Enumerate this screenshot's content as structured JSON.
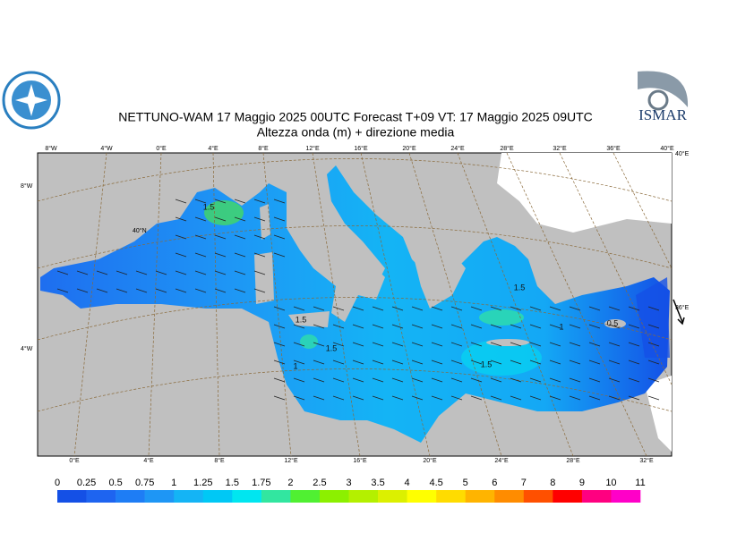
{
  "header": {
    "title": "NETTUNO-WAM  17   Maggio  2025 00UTC Forecast T+09 VT: 17   Maggio  2025 09UTC",
    "subtitle": "Altezza onda (m) + direzione media"
  },
  "logos": {
    "right": "ISMAR"
  },
  "graticule": {
    "top": [
      "8°W",
      "4°W",
      "0°E",
      "4°E",
      "8°E",
      "12°E",
      "16°E",
      "20°E",
      "24°E",
      "28°E",
      "32°E",
      "36°E",
      "40°E"
    ],
    "bottom": [
      "0°E",
      "4°E",
      "8°E",
      "12°E",
      "16°E",
      "20°E",
      "24°E",
      "28°E",
      "32°E"
    ],
    "left": [
      "8°W",
      "4°W"
    ],
    "right": [
      "40°E",
      "36°E"
    ],
    "inner": [
      "40°N"
    ]
  },
  "contour_labels": [
    "1.5",
    "1.5",
    "1.5",
    "1",
    "1.5",
    "1",
    "1.5",
    "0.5"
  ],
  "colorbar": {
    "ticks": [
      0,
      0.25,
      0.5,
      0.75,
      1,
      1.25,
      1.5,
      1.75,
      2,
      2.5,
      3,
      3.5,
      4,
      4.5,
      5,
      6,
      7,
      8,
      9,
      10,
      11
    ],
    "colors": [
      "#1450e6",
      "#1e64f0",
      "#1e7df5",
      "#1e96f5",
      "#14b4f5",
      "#00c8f5",
      "#00e6f0",
      "#32e6a0",
      "#50f032",
      "#8cf000",
      "#b4f000",
      "#dcf000",
      "#ffff00",
      "#ffdc00",
      "#ffb400",
      "#ff8c00",
      "#ff5000",
      "#ff0000",
      "#ff0080",
      "#ff00c8"
    ]
  }
}
